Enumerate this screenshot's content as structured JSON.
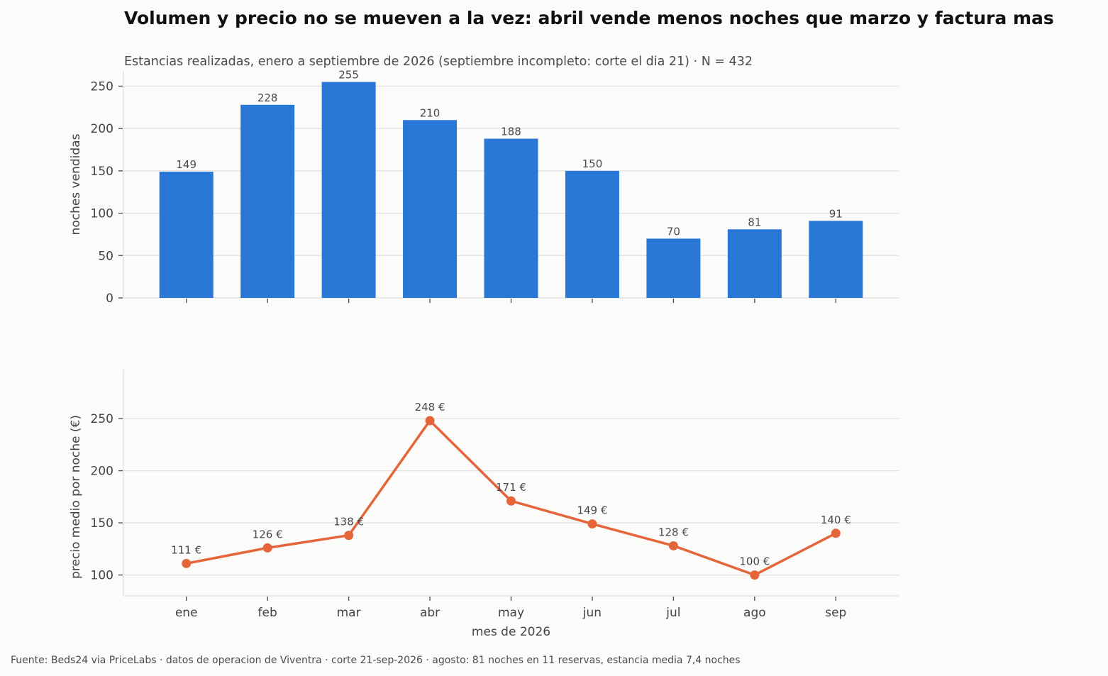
{
  "title": "Volumen y precio no se mueven a la vez: abril vende menos noches que marzo y factura mas",
  "subtitle": "Estancias realizadas, enero a septiembre de 2026 (septiembre incompleto: corte el dia 21) · N = 432",
  "footer": "Fuente: Beds24 via PriceLabs · datos de operacion de Viventra · corte 21-sep-2026 · agosto: 81 noches en 11 reservas, estancia media 7,4 noches",
  "colors": {
    "bar": "#2977d6",
    "line": "#e5653a"
  },
  "chart_data": [
    {
      "type": "bar",
      "categories": [
        "ene",
        "feb",
        "mar",
        "abr",
        "may",
        "jun",
        "jul",
        "ago",
        "sep"
      ],
      "values": [
        149,
        228,
        255,
        210,
        188,
        150,
        70,
        81,
        91
      ],
      "value_labels": [
        "149",
        "228",
        "255",
        "210",
        "188",
        "150",
        "70",
        "81",
        "91"
      ],
      "ylabel": "noches vendidas",
      "xlabel": "",
      "ylim": [
        0,
        268
      ],
      "yticks": [
        0,
        50,
        100,
        150,
        200,
        250
      ],
      "grid": true
    },
    {
      "type": "line",
      "categories": [
        "ene",
        "feb",
        "mar",
        "abr",
        "may",
        "jun",
        "jul",
        "ago",
        "sep"
      ],
      "values": [
        111,
        126,
        138,
        248,
        171,
        149,
        128,
        100,
        140
      ],
      "value_labels": [
        "111 €",
        "126 €",
        "138 €",
        "248 €",
        "171 €",
        "149 €",
        "128 €",
        "100 €",
        "140 €"
      ],
      "ylabel": "precio medio por noche (€)",
      "xlabel": "mes de 2026",
      "ylim": [
        80,
        297
      ],
      "yticks": [
        100,
        150,
        200,
        250
      ],
      "grid": true
    }
  ]
}
